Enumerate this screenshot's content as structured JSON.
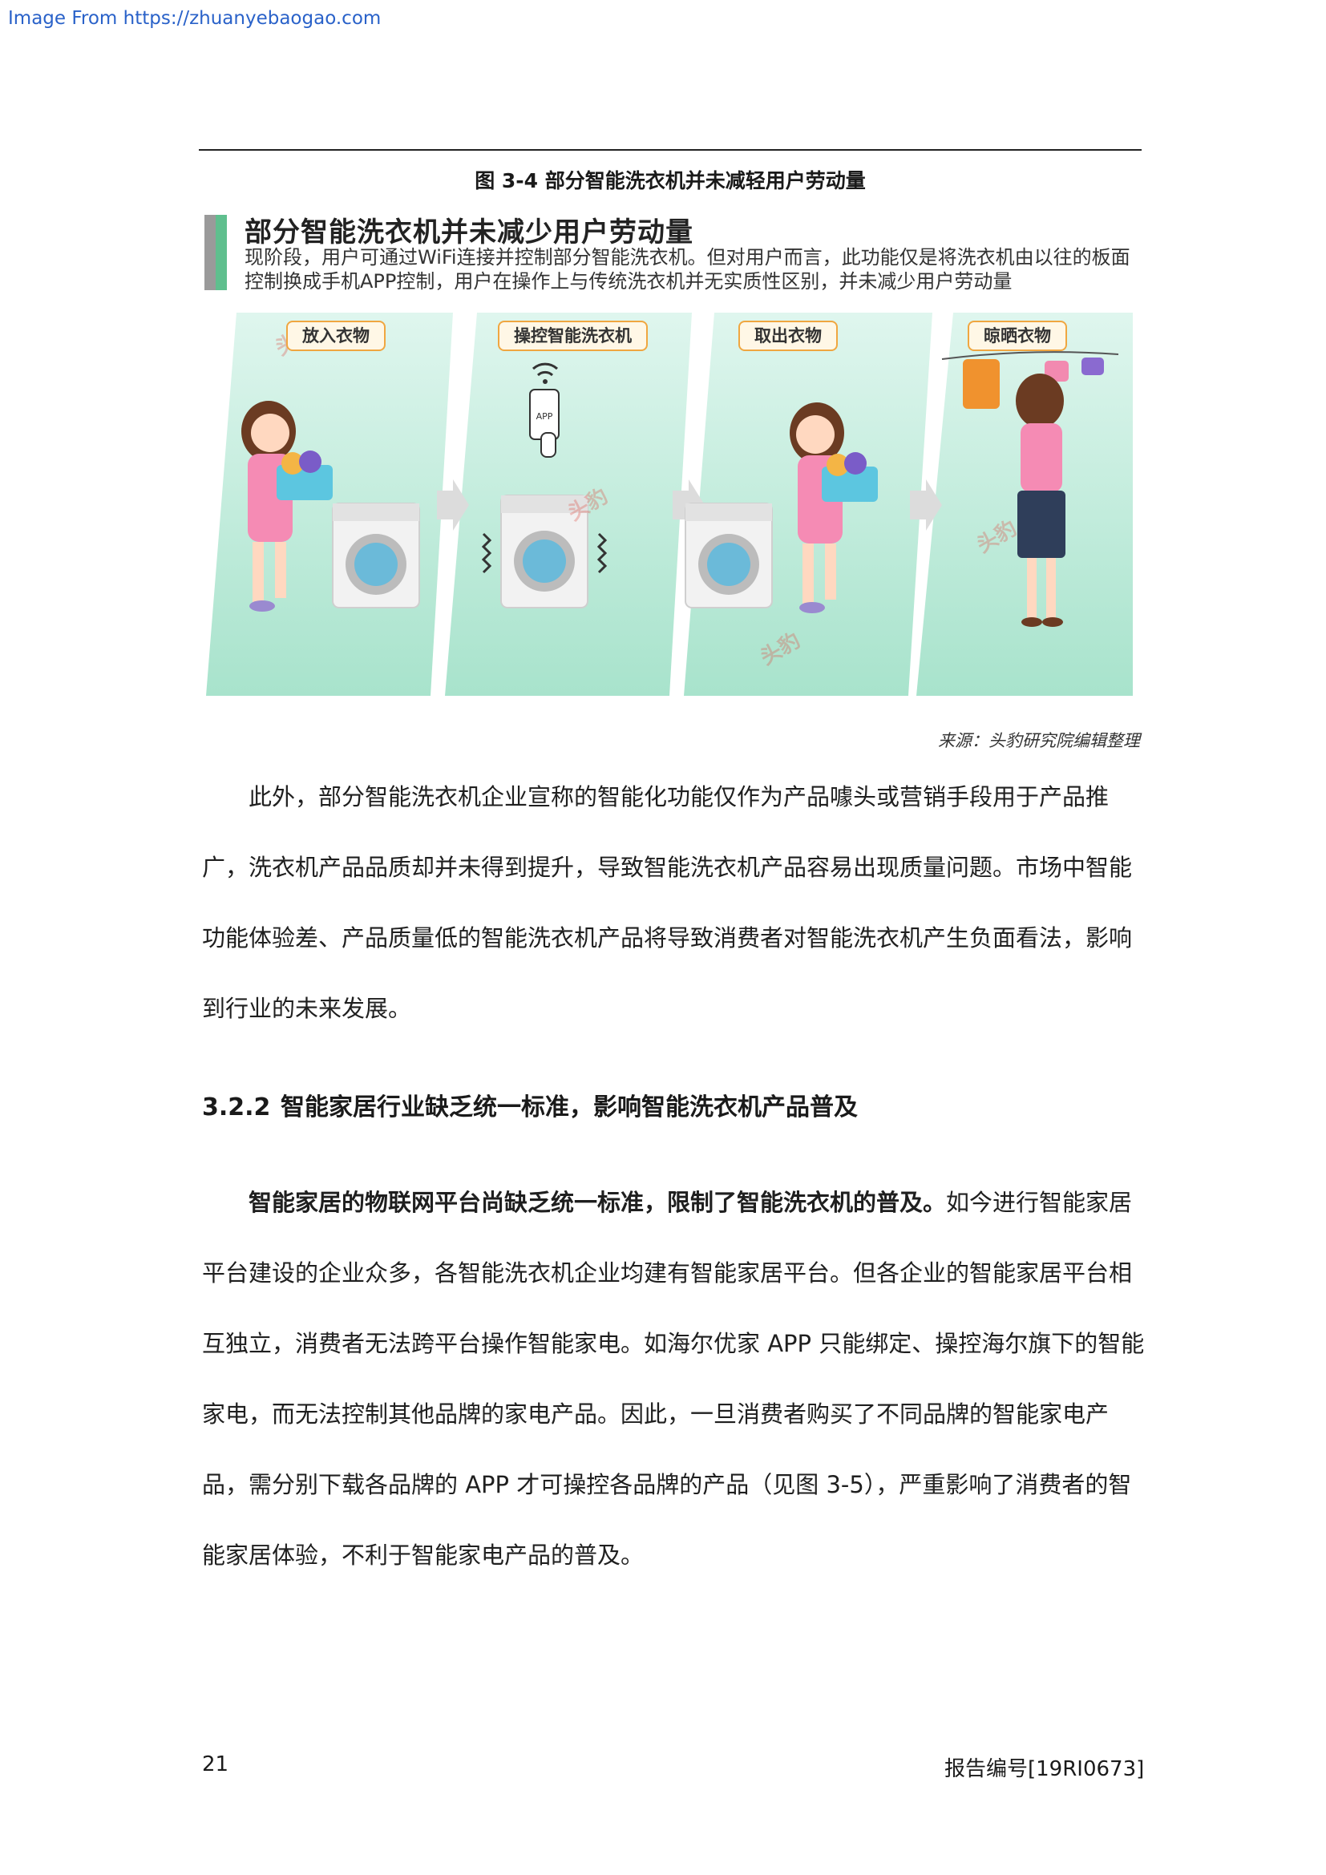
{
  "source_link": "Image From https://zhuanyebaogao.com",
  "figure": {
    "caption": "图 3-4 部分智能洗衣机并未减轻用户劳动量",
    "title": "部分智能洗衣机并未减少用户劳动量",
    "description": "现阶段，用户可通过WiFi连接并控制部分智能洗衣机。但对用户而言，此功能仅是将洗衣机由以往的板面控制换成手机APP控制，用户在操作上与传统洗衣机并无实质性区别，并未减少用户劳动量",
    "steps": [
      {
        "label": "放入衣物"
      },
      {
        "label": "操控智能洗衣机"
      },
      {
        "label": "取出衣物"
      },
      {
        "label": "晾晒衣物"
      }
    ],
    "app_icon_text": "APP",
    "watermark": "头豹",
    "source": "来源：头豹研究院编辑整理"
  },
  "paragraph1": "此外，部分智能洗衣机企业宣称的智能化功能仅作为产品噱头或营销手段用于产品推广，洗衣机产品品质却并未得到提升，导致智能洗衣机产品容易出现质量问题。市场中智能功能体验差、产品质量低的智能洗衣机产品将导致消费者对智能洗衣机产生负面看法，影响到行业的未来发展。",
  "section": {
    "number": "3.2.2",
    "title": "智能家居行业缺乏统一标准，影响智能洗衣机产品普及"
  },
  "paragraph2": {
    "bold": "智能家居的物联网平台尚缺乏统一标准，限制了智能洗衣机的普及。",
    "text": "如今进行智能家居平台建设的企业众多，各智能洗衣机企业均建有智能家居平台。但各企业的智能家居平台相互独立，消费者无法跨平台操作智能家电。如海尔优家 APP 只能绑定、操控海尔旗下的智能家电，而无法控制其他品牌的家电产品。因此，一旦消费者购买了不同品牌的智能家电产品，需分别下载各品牌的 APP 才可操控各品牌的产品（见图 3-5），严重影响了消费者的智能家居体验，不利于智能家电产品的普及。"
  },
  "footer": {
    "page_number": "21",
    "report_number": "报告编号[19RI0673]"
  }
}
